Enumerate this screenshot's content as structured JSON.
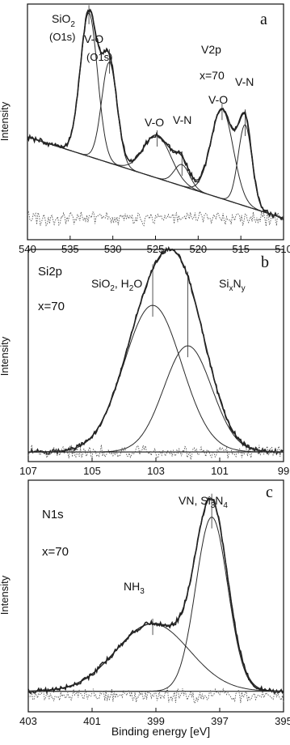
{
  "colors": {
    "frame": "#111111",
    "data": "#222222",
    "fit": "#2a2a2a",
    "residual": "#555555",
    "background": "#ffffff"
  },
  "chart_data": [
    {
      "type": "line",
      "panel_letter": "a",
      "core_level": "V2p",
      "composition": "x=70",
      "ylabel": "Intensity",
      "xlabel": "",
      "xlim": [
        540,
        510
      ],
      "reversed_x": true,
      "ylim": [
        -0.1,
        1.0
      ],
      "xticks": [
        540,
        535,
        530,
        525,
        520,
        515,
        510
      ],
      "annotations": [
        {
          "text": "SiO2",
          "sub": true,
          "x": 533.5,
          "y": 0.98
        },
        {
          "text": "(O1s)",
          "x": 533.5,
          "y": 0.9
        },
        {
          "text": "V-O",
          "x": 530.6,
          "y": 0.92
        },
        {
          "text": "(O1s)",
          "x": 530.6,
          "y": 0.84
        },
        {
          "text": "V2p",
          "x": 522.0,
          "y": 0.92
        },
        {
          "text": "x=70",
          "x": 522.0,
          "y": 0.8
        },
        {
          "text": "V-O",
          "x": 524.9,
          "y": 0.54
        },
        {
          "text": "V-N",
          "x": 521.8,
          "y": 0.56
        },
        {
          "text": "V-O",
          "x": 517.1,
          "y": 0.64
        },
        {
          "text": "V-N",
          "x": 514.2,
          "y": 0.72
        }
      ],
      "peaks": [
        {
          "label": "SiO2 (O1s)",
          "center": 532.8,
          "height": 0.67,
          "width": 1.0
        },
        {
          "label": "V-O (O1s)",
          "center": 530.4,
          "height": 0.47,
          "width": 0.9
        },
        {
          "label": "V-O",
          "center": 524.8,
          "height": 0.2,
          "width": 1.6
        },
        {
          "label": "V-N",
          "center": 521.9,
          "height": 0.1,
          "width": 0.9
        },
        {
          "label": "V-O",
          "center": 517.2,
          "height": 0.42,
          "width": 1.3
        },
        {
          "label": "V-N",
          "center": 514.5,
          "height": 0.38,
          "width": 0.8
        }
      ],
      "background": {
        "x": [
          540,
          510
        ],
        "y": [
          0.38,
          0.0
        ]
      }
    },
    {
      "type": "line",
      "panel_letter": "b",
      "core_level": "Si2p",
      "composition": "x=70",
      "ylabel": "Intensity",
      "xlabel": "",
      "xlim": [
        107,
        99
      ],
      "reversed_x": true,
      "ylim": [
        -0.05,
        1.05
      ],
      "xticks": [
        107,
        105,
        103,
        101,
        99
      ],
      "annotations": [
        {
          "text": "SiO2, H2O",
          "x": 104.0,
          "y": 0.94
        },
        {
          "text": "SixNy",
          "x": 100.8,
          "y": 0.84
        }
      ],
      "peaks": [
        {
          "label": "SiO2, H2O",
          "center": 103.1,
          "height": 0.76,
          "width": 0.9
        },
        {
          "label": "SixNy",
          "center": 102.0,
          "height": 0.55,
          "width": 0.75
        }
      ],
      "background": {
        "x": [
          107,
          99
        ],
        "y": [
          0.0,
          0.0
        ]
      }
    },
    {
      "type": "line",
      "panel_letter": "c",
      "core_level": "N1s",
      "composition": "x=70",
      "ylabel": "Intensity",
      "xlabel": "Binding energy [eV]",
      "xlim": [
        403,
        395
      ],
      "reversed_x": true,
      "ylim": [
        -0.08,
        1.05
      ],
      "xticks": [
        403,
        401,
        399,
        397,
        395
      ],
      "annotations": [
        {
          "text": "VN, Si3N4",
          "x": 397.2,
          "y": 1.02
        },
        {
          "text": "NH3",
          "x": 399.1,
          "y": 0.55
        }
      ],
      "peaks": [
        {
          "label": "NH3",
          "center": 399.1,
          "height": 0.33,
          "width": 1.15
        },
        {
          "label": "VN, Si3N4",
          "center": 397.25,
          "height": 0.85,
          "width": 0.5
        }
      ],
      "background": {
        "x": [
          403,
          395
        ],
        "y": [
          0.02,
          0.02
        ]
      }
    }
  ],
  "panels_text": {
    "a": {
      "letter": "a",
      "core": "V2p",
      "comp": "x=70",
      "ylabel": "Intensity",
      "ticks": [
        "540",
        "535",
        "530",
        "525",
        "520",
        "515",
        "510"
      ]
    },
    "b": {
      "letter": "b",
      "core": "Si2p",
      "comp": "x=70",
      "ylabel": "Intensity",
      "ticks": [
        "107",
        "105",
        "103",
        "101",
        "99"
      ]
    },
    "c": {
      "letter": "c",
      "core": "N1s",
      "comp": "x=70",
      "ylabel": "Intensity",
      "ticks": [
        "403",
        "401",
        "399",
        "397",
        "395"
      ],
      "xlabel": "Binding energy [eV]"
    }
  },
  "labels": {
    "a_sio2_base": "SiO",
    "a_sio2_sub": "2",
    "a_o1s_1": "(O1s)",
    "a_vo_1": "V-O",
    "a_o1s_2": "(O1s)",
    "a_vo_2": "V-O",
    "a_vn_1": "V-N",
    "a_vo_3": "V-O",
    "a_vn_2": "V-N",
    "b_sio2_base": "SiO",
    "b_sio2_sub": "2",
    "b_h2o_base": ", H",
    "b_h2o_sub": "2",
    "b_h2o_end": "O",
    "b_sixny_si": "Si",
    "b_sixny_x": "x",
    "b_sixny_n": "N",
    "b_sixny_y": "y",
    "c_vn_base": "VN, Si",
    "c_vn_sub3": "3",
    "c_vn_n": "N",
    "c_vn_sub4": "4",
    "c_nh3_base": "NH",
    "c_nh3_sub": "3"
  }
}
